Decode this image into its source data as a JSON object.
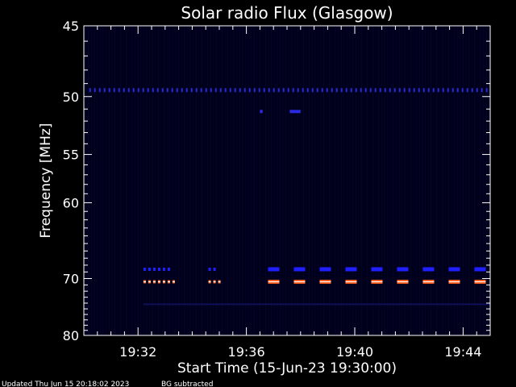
{
  "chart_data": {
    "type": "heatmap",
    "title": "Solar radio Flux (Glasgow)",
    "xlabel": "Start Time (15-Jun-23 19:30:00)",
    "ylabel": "Frequency [MHz]",
    "x_ticks": [
      "19:32",
      "19:36",
      "19:40",
      "19:44"
    ],
    "x_tick_minutes": [
      2,
      6,
      10,
      14
    ],
    "x_range_minutes": [
      0,
      15
    ],
    "y_ticks": [
      45,
      50,
      55,
      60,
      70,
      80
    ],
    "y_tick_labels": [
      "45",
      "50",
      "55",
      "60",
      "70",
      "80"
    ],
    "y_range": [
      45,
      80
    ],
    "y_scale": "reciprocal",
    "background_color": "#000000",
    "plot_color": "#00001c",
    "bands": [
      {
        "freq": 49.5,
        "start": 0.2,
        "end": 15.0,
        "style": "dashed",
        "color": "#2a2ad8"
      },
      {
        "freq": 68.6,
        "start": 2.2,
        "end": 3.3,
        "style": "dotted",
        "color": "#2020ff"
      },
      {
        "freq": 68.6,
        "start": 4.6,
        "end": 4.9,
        "style": "dotted",
        "color": "#2020ff"
      },
      {
        "freq": 68.6,
        "start": 6.8,
        "end": 15.0,
        "style": "dashed",
        "color": "#2020ff"
      },
      {
        "freq": 70.5,
        "start": 2.2,
        "end": 3.4,
        "style": "dotted",
        "color": "#ff6a2a"
      },
      {
        "freq": 70.5,
        "start": 4.6,
        "end": 5.1,
        "style": "dotted",
        "color": "#ff6a2a"
      },
      {
        "freq": 70.5,
        "start": 6.8,
        "end": 15.0,
        "style": "dashed",
        "color": "#ff5a1a"
      },
      {
        "freq": 74.2,
        "start": 2.2,
        "end": 15.0,
        "style": "faint",
        "color": "#10105a"
      }
    ],
    "blips": [
      {
        "freq": 51.2,
        "start": 6.5,
        "end": 6.6,
        "color": "#2a2ae0"
      },
      {
        "freq": 51.2,
        "start": 7.6,
        "end": 8.0,
        "color": "#2a2ae0"
      }
    ]
  },
  "footer": {
    "updated": "Updated Thu Jun 15 20:18:02 2023",
    "note": "BG subtracted"
  }
}
